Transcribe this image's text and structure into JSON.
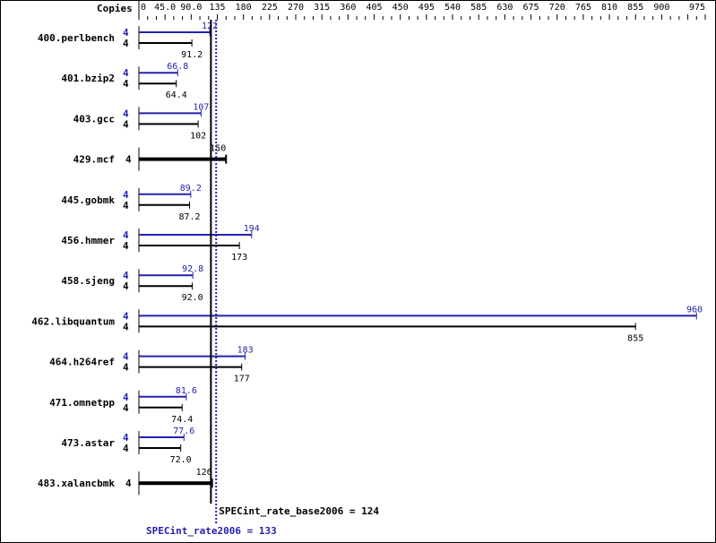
{
  "chart_data": {
    "type": "bar",
    "orientation": "horizontal",
    "copies_header": "Copies",
    "xlim": [
      0,
      975
    ],
    "x_ticks": [
      "0",
      "45.0",
      "90.0",
      "135",
      "180",
      "225",
      "270",
      "315",
      "360",
      "405",
      "450",
      "495",
      "540",
      "585",
      "630",
      "675",
      "720",
      "765",
      "810",
      "855",
      "900",
      "975"
    ],
    "x_tick_values": [
      0,
      45,
      90,
      135,
      180,
      225,
      270,
      315,
      360,
      405,
      450,
      495,
      540,
      585,
      630,
      675,
      720,
      765,
      810,
      855,
      900,
      975
    ],
    "minor_tick_step": 15,
    "categories": [
      "400.perlbench",
      "401.bzip2",
      "403.gcc",
      "429.mcf",
      "445.gobmk",
      "456.hmmer",
      "458.sjeng",
      "462.libquantum",
      "464.h264ref",
      "471.omnetpp",
      "473.astar",
      "483.xalancbmk"
    ],
    "series": [
      {
        "name": "SPECint_rate2006",
        "color": "#2222aa",
        "copies": [
          "4",
          "4",
          "4",
          "",
          "4",
          "4",
          "4",
          "4",
          "4",
          "4",
          "4",
          ""
        ],
        "values": [
          122,
          66.8,
          107,
          null,
          89.2,
          194,
          92.8,
          960,
          183,
          81.6,
          77.6,
          null
        ],
        "labels": [
          "122",
          "66.8",
          "107",
          "",
          "89.2",
          "194",
          "92.8",
          "960",
          "183",
          "81.6",
          "77.6",
          ""
        ]
      },
      {
        "name": "SPECint_rate_base2006",
        "color": "#000000",
        "copies": [
          "4",
          "4",
          "4",
          "4",
          "4",
          "4",
          "4",
          "4",
          "4",
          "4",
          "4",
          "4"
        ],
        "values": [
          91.2,
          64.4,
          102,
          150,
          87.2,
          173,
          92.0,
          855,
          177,
          74.4,
          72.0,
          126
        ],
        "labels": [
          "91.2",
          "64.4",
          "102",
          "150",
          "87.2",
          "173",
          "92.0",
          "855",
          "177",
          "74.4",
          "72.0",
          "126"
        ]
      }
    ],
    "single_bar": [
      false,
      false,
      false,
      true,
      false,
      false,
      false,
      false,
      false,
      false,
      false,
      true
    ],
    "reference_lines": [
      {
        "label": "SPECint_rate_base2006 = 124",
        "value": 124,
        "color": "#000000",
        "style": "solid"
      },
      {
        "label": "SPECint_rate2006 = 133",
        "value": 133,
        "color": "#2222aa",
        "style": "dotted"
      }
    ]
  }
}
